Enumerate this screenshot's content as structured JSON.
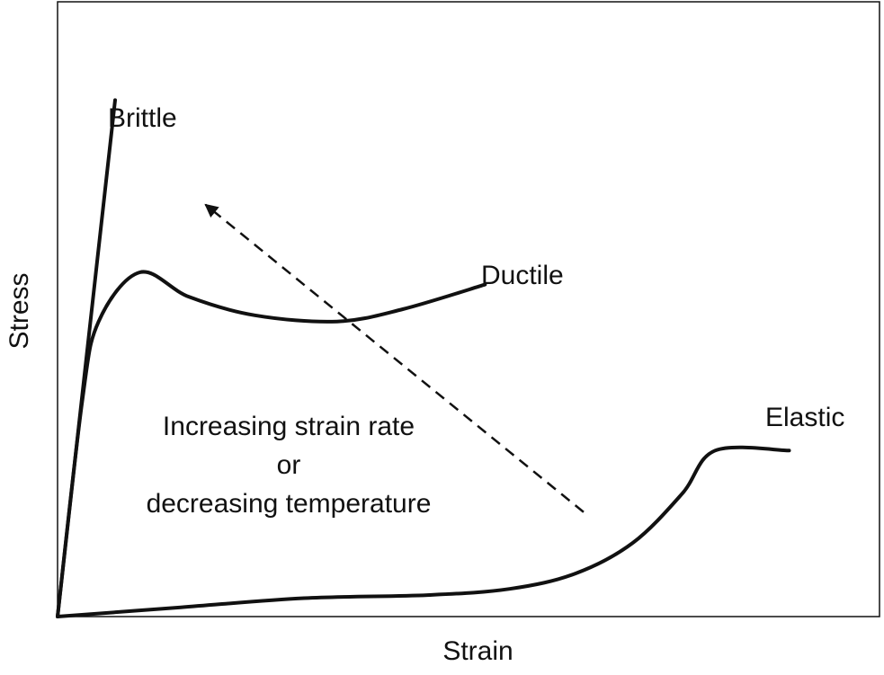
{
  "chart_data": {
    "type": "line",
    "title": "",
    "xlabel": "Strain",
    "ylabel": "Stress",
    "grid": false,
    "legend": "none",
    "series": [
      {
        "name": "Brittle",
        "color": "#111111",
        "points": [
          [
            0,
            0
          ],
          [
            0.07,
            0.84
          ]
        ]
      },
      {
        "name": "Ductile",
        "color": "#111111",
        "points": [
          [
            0,
            0
          ],
          [
            0.03,
            0.35
          ],
          [
            0.05,
            0.48
          ],
          [
            0.1,
            0.56
          ],
          [
            0.16,
            0.52
          ],
          [
            0.24,
            0.49
          ],
          [
            0.34,
            0.48
          ],
          [
            0.42,
            0.5
          ],
          [
            0.52,
            0.54
          ]
        ]
      },
      {
        "name": "Elastic",
        "color": "#111111",
        "points": [
          [
            0,
            0
          ],
          [
            0.15,
            0.015
          ],
          [
            0.3,
            0.03
          ],
          [
            0.45,
            0.035
          ],
          [
            0.55,
            0.045
          ],
          [
            0.63,
            0.07
          ],
          [
            0.7,
            0.12
          ],
          [
            0.76,
            0.2
          ],
          [
            0.8,
            0.27
          ],
          [
            0.89,
            0.27
          ]
        ]
      }
    ],
    "annotation": {
      "lines": [
        "Increasing strain rate",
        "or",
        "decreasing temperature"
      ],
      "arrow": {
        "from": [
          0.64,
          0.17
        ],
        "to": [
          0.18,
          0.67
        ],
        "style": "dashed"
      }
    }
  }
}
